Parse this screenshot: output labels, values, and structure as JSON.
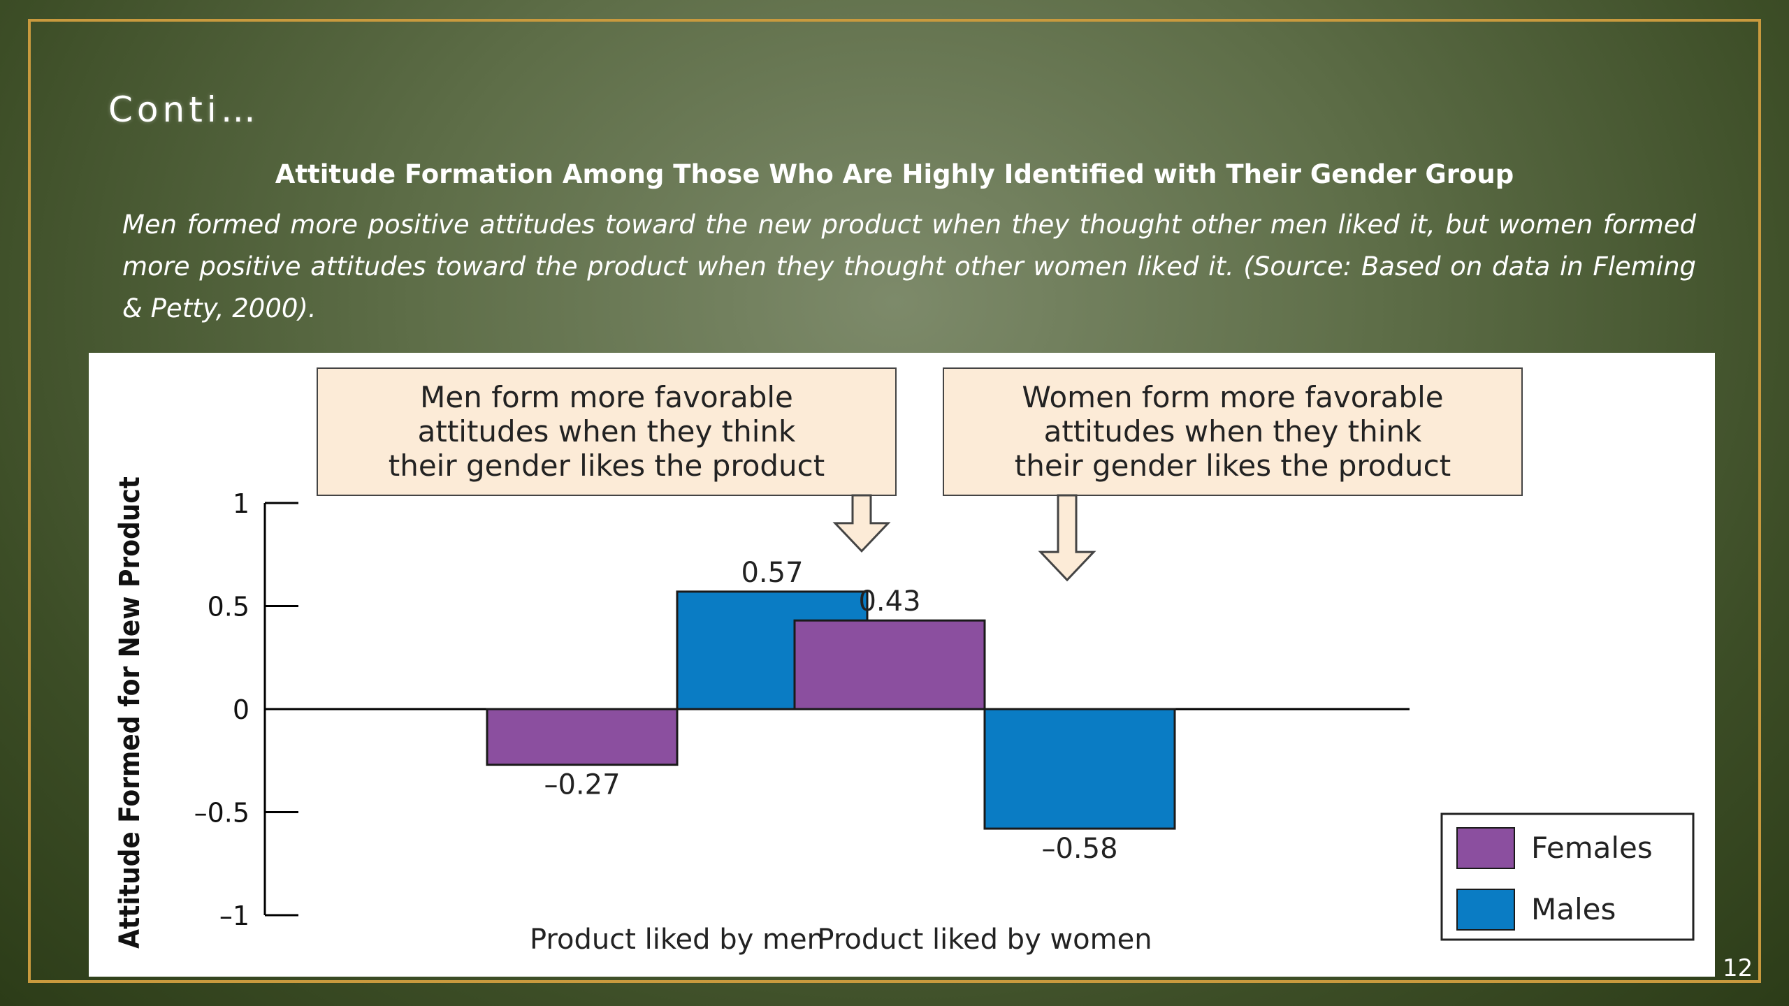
{
  "slide": {
    "title": "Conti…",
    "figure_title": "Attitude Formation Among Those Who Are Highly Identified with Their Gender Group",
    "caption": "Men formed more positive attitudes toward the new product when they thought other men liked it, but women formed more positive attitudes toward the product when they thought other women liked it. (Source: Based on data in Fleming & Petty, 2000).",
    "page_number": "12"
  },
  "chart_data": {
    "type": "bar",
    "categories": [
      "Product liked by men",
      "Product liked by women"
    ],
    "series": [
      {
        "name": "Females",
        "values": [
          -0.27,
          0.43
        ],
        "color": "#8b4f9f"
      },
      {
        "name": "Males",
        "values": [
          0.57,
          -0.58
        ],
        "color": "#0a7cc4"
      }
    ],
    "value_labels": [
      [
        "–0.27",
        "0.43"
      ],
      [
        "0.57",
        "–0.58"
      ]
    ],
    "ylabel": "Attitude Formed for New Product",
    "ylim": [
      -1,
      1
    ],
    "yticks": [
      1,
      0.5,
      0,
      -0.5,
      -1
    ],
    "ytick_labels": [
      "1",
      "0.5",
      "0",
      "–0.5",
      "–1"
    ],
    "grid": false,
    "legend_position": "bottom-right",
    "annotations": [
      {
        "lines": [
          "Men form more favorable",
          "attitudes when they think",
          "their gender likes the product"
        ],
        "points_to": "Males, Product liked by men"
      },
      {
        "lines": [
          "Women form more favorable",
          "attitudes when they think",
          "their gender likes the product"
        ],
        "points_to": "Females, Product liked by women"
      }
    ],
    "annotation_fill": "#fcebd7"
  }
}
